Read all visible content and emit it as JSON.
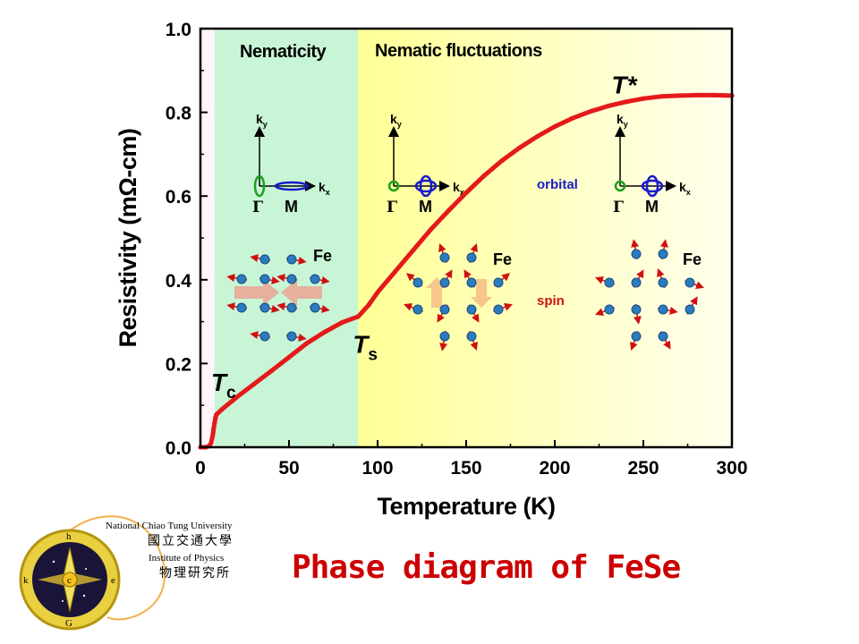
{
  "chart_data": {
    "type": "line",
    "title": "",
    "xlabel": "Temperature (K)",
    "ylabel": "Resistivity (mΩ-cm)",
    "xlim": [
      0,
      300
    ],
    "ylim": [
      0,
      1.0
    ],
    "xticks": [
      0,
      50,
      100,
      150,
      200,
      250,
      300
    ],
    "yticks": [
      0.0,
      0.2,
      0.4,
      0.6,
      0.8,
      1.0
    ],
    "xtick_labels": [
      "0",
      "50",
      "100",
      "150",
      "200",
      "250",
      "300"
    ],
    "ytick_labels": [
      "0.0",
      "0.2",
      "0.4",
      "0.6",
      "0.8",
      "1.0"
    ],
    "grid": false,
    "regions": [
      {
        "label": "Nematicity",
        "x_range": [
          8,
          89
        ],
        "color": "#c8f5d6"
      },
      {
        "label": "Nematic fluctuations",
        "x_range": [
          89,
          300
        ],
        "color_start": "#ffff96",
        "color_end": "#ffffee"
      }
    ],
    "series": [
      {
        "color": "#e41a1a",
        "x": [
          0,
          3,
          5,
          6,
          7,
          7.5,
          8,
          8.5,
          9,
          12,
          20,
          30,
          40,
          50,
          60,
          70,
          80,
          85,
          89,
          95,
          100,
          110,
          120,
          130,
          140,
          150,
          160,
          170,
          180,
          190,
          200,
          210,
          220,
          230,
          240,
          250,
          260,
          270,
          280,
          290,
          300
        ],
        "y": [
          0.0,
          0.0,
          0.003,
          0.01,
          0.03,
          0.045,
          0.058,
          0.07,
          0.078,
          0.09,
          0.118,
          0.15,
          0.182,
          0.215,
          0.248,
          0.275,
          0.298,
          0.306,
          0.312,
          0.34,
          0.37,
          0.42,
          0.47,
          0.52,
          0.565,
          0.608,
          0.648,
          0.684,
          0.715,
          0.742,
          0.766,
          0.786,
          0.802,
          0.815,
          0.825,
          0.833,
          0.838,
          0.84,
          0.841,
          0.841,
          0.84
        ]
      }
    ],
    "annotations": [
      {
        "main": "T",
        "sub": "c",
        "x": 6,
        "y": 0.135
      },
      {
        "main": "T",
        "sub": "s",
        "x": 86,
        "y": 0.225
      },
      {
        "main": "T*",
        "sub": "",
        "x": 232,
        "y": 0.845
      }
    ],
    "insets": {
      "axis_y": "k",
      "axis_y_sub": "y",
      "axis_x": "k",
      "axis_x_sub": "x",
      "gamma": "Γ",
      "m": "M",
      "fe": "Fe",
      "orbital": "orbital",
      "spin": "spin"
    }
  },
  "logo": {
    "university_en": "National Chiao Tung University",
    "university_cn": "國立交通大學",
    "institute_en": "Institute of Physics",
    "institute_cn": "物理研究所",
    "compass_letters": [
      "h",
      "k",
      "e",
      "G",
      "c"
    ]
  },
  "caption": "Phase diagram of FeSe"
}
